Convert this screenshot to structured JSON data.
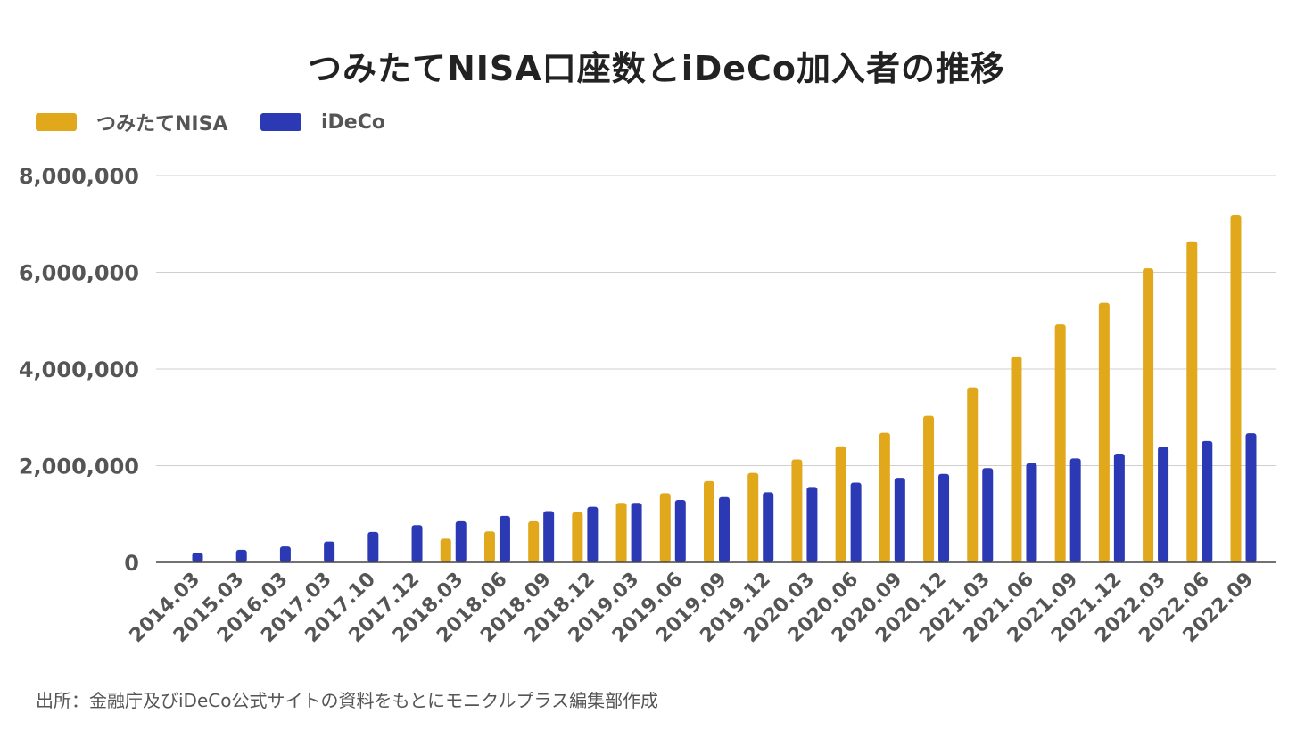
{
  "chart_data": {
    "type": "bar",
    "title": "つみたてNISA口座数とiDeCo加入者の推移",
    "categories": [
      "2014.03",
      "2015.03",
      "2016.03",
      "2017.03",
      "2017.10",
      "2017.12",
      "2018.03",
      "2018.06",
      "2018.09",
      "2018.12",
      "2019.03",
      "2019.06",
      "2019.09",
      "2019.12",
      "2020.03",
      "2020.06",
      "2020.09",
      "2020.12",
      "2021.03",
      "2021.06",
      "2021.09",
      "2021.12",
      "2022.03",
      "2022.06",
      "2022.09"
    ],
    "series": [
      {
        "name": "つみたてNISA",
        "color": "#E2A81C",
        "values": [
          null,
          null,
          null,
          null,
          null,
          null,
          490000,
          640000,
          850000,
          1040000,
          1230000,
          1430000,
          1680000,
          1850000,
          2130000,
          2400000,
          2680000,
          3030000,
          3620000,
          4260000,
          4920000,
          5370000,
          6080000,
          6640000,
          7190000
        ]
      },
      {
        "name": "iDeCo",
        "color": "#2B3AB4",
        "values": [
          200000,
          260000,
          330000,
          430000,
          630000,
          770000,
          850000,
          960000,
          1060000,
          1150000,
          1230000,
          1290000,
          1350000,
          1450000,
          1560000,
          1650000,
          1750000,
          1830000,
          1950000,
          2050000,
          2150000,
          2250000,
          2390000,
          2510000,
          2670000
        ]
      }
    ],
    "xlabel": "",
    "ylabel": "",
    "ylim": [
      0,
      8000000
    ],
    "yticks": [
      0,
      2000000,
      4000000,
      6000000,
      8000000
    ],
    "ytick_labels": [
      "0",
      "2,000,000",
      "4,000,000",
      "6,000,000",
      "8,000,000"
    ],
    "grid": true,
    "legend_position": "top-left"
  },
  "source_note": "出所：金融庁及びiDeCo公式サイトの資料をもとにモニクルプラス編集部作成"
}
